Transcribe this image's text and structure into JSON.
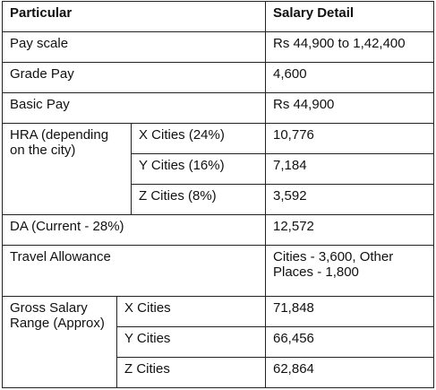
{
  "table": {
    "headers": {
      "particular": "Particular",
      "detail": "Salary Detail"
    },
    "pay_scale": {
      "label": "Pay scale",
      "value": "Rs 44,900 to 1,42,400"
    },
    "grade_pay": {
      "label": "Grade Pay",
      "value": "4,600"
    },
    "basic_pay": {
      "label": "Basic Pay",
      "value": "Rs 44,900"
    },
    "hra": {
      "label": "HRA (depending on the city)",
      "rows": [
        {
          "city": "X Cities (24%)",
          "value": "10,776"
        },
        {
          "city": "Y Cities (16%)",
          "value": "7,184"
        },
        {
          "city": "Z Cities (8%)",
          "value": "3,592"
        }
      ]
    },
    "da": {
      "label": "DA (Current - 28%)",
      "value": "12,572"
    },
    "travel": {
      "label": "Travel Allowance",
      "value": "Cities - 3,600, Other Places - 1,800"
    },
    "gross": {
      "label": "Gross Salary Range (Approx)",
      "rows": [
        {
          "city": "X Cities",
          "value": "71,848"
        },
        {
          "city": "Y Cities",
          "value": "66,456"
        },
        {
          "city": "Z Cities",
          "value": "62,864"
        }
      ]
    }
  }
}
